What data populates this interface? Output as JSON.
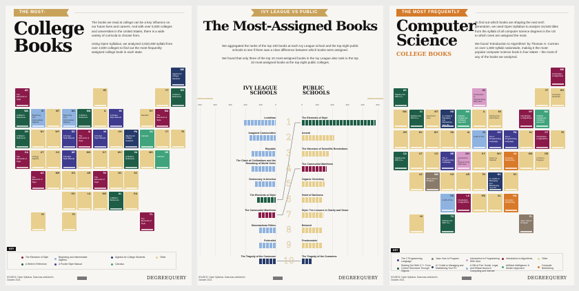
{
  "colors": {
    "maroon": "#8b1a4a",
    "lightblue": "#8fb3e0",
    "navy": "#263a6a",
    "tan": "#e8cf8e",
    "dkgreen": "#1f5e46",
    "purple": "#3f3b8e",
    "teal": "#3fa37c",
    "pink": "#d99bc8",
    "taupe": "#8a7a6a",
    "orange": "#d97a2a",
    "gold": "#c9a25a"
  },
  "left": {
    "banner": "THE MOST-POPULAR",
    "title_line1": "College",
    "title_line2": "Books",
    "intro1": "The books we read at college can be a key influence on our future lives and careers. And with over 5,000 colleges and universities in the United States, there is a wide variety of curricula to choose from.",
    "intro2": "Using Open Syllabus, we analyzed 3,033,469 syllabi from over 2,500 colleges to find out the most frequently assigned college book in each state.",
    "key_label": "KEY",
    "key": [
      {
        "label": "The Elements of Style",
        "color": "maroon"
      },
      {
        "label": "Beginning and Intermediate Algebra",
        "color": "lightblue"
      },
      {
        "label": "Algebra for College Students",
        "color": "navy"
      },
      {
        "label": "Other",
        "color": "tan"
      },
      {
        "label": "A Writer's Reference",
        "color": "dkgreen"
      },
      {
        "label": "A Pocket Style Manual",
        "color": "purple"
      },
      {
        "label": "Calculus",
        "color": "teal"
      }
    ],
    "states": [
      {
        "ab": "ME",
        "c": "navy",
        "r": -1,
        "k": 10,
        "t": "Algebra for College Students"
      },
      {
        "ab": "AK",
        "c": "maroon",
        "r": 0,
        "k": 0,
        "t": "The Elements of Style"
      },
      {
        "ab": "WI",
        "c": "tan",
        "r": 0,
        "k": 5,
        "t": ""
      },
      {
        "ab": "VT",
        "c": "tan",
        "r": 0,
        "k": 9,
        "t": ""
      },
      {
        "ab": "NH",
        "c": "dkgreen",
        "r": 0,
        "k": 10,
        "t": "A Writer's Reference"
      },
      {
        "ab": "WA",
        "c": "dkgreen",
        "r": 1,
        "k": 0,
        "t": "A Writer's Reference"
      },
      {
        "ab": "ID",
        "c": "lightblue",
        "r": 1,
        "k": 1,
        "t": "Beginning and Intermediate Algebra"
      },
      {
        "ab": "MT",
        "c": "tan",
        "r": 1,
        "k": 2,
        "t": ""
      },
      {
        "ab": "ND",
        "c": "lightblue",
        "r": 1,
        "k": 3,
        "t": "Beginning and Intermediate Algebra"
      },
      {
        "ab": "MN",
        "c": "dkgreen",
        "r": 1,
        "k": 4,
        "t": "A Writer's Reference"
      },
      {
        "ab": "IL",
        "c": "tan",
        "r": 1,
        "k": 5,
        "t": ""
      },
      {
        "ab": "MI",
        "c": "purple",
        "r": 1,
        "k": 6,
        "t": "A Pocket Style Manual"
      },
      {
        "ab": "NY",
        "c": "tan",
        "r": 1,
        "k": 8,
        "t": "Republic"
      },
      {
        "ab": "MA",
        "c": "maroon",
        "r": 1,
        "k": 9,
        "t": "The Elements of Style"
      },
      {
        "ab": "OR",
        "c": "dkgreen",
        "r": 2,
        "k": 0,
        "t": "A Writer's Reference"
      },
      {
        "ab": "NV",
        "c": "tan",
        "r": 2,
        "k": 1,
        "t": ""
      },
      {
        "ab": "WY",
        "c": "tan",
        "r": 2,
        "k": 2,
        "t": ""
      },
      {
        "ab": "SD",
        "c": "purple",
        "r": 2,
        "k": 3,
        "t": "A Pocket Style Manual"
      },
      {
        "ab": "IA",
        "c": "maroon",
        "r": 2,
        "k": 4,
        "t": "The Elements of Style"
      },
      {
        "ab": "IN",
        "c": "purple",
        "r": 2,
        "k": 5,
        "t": "A Pocket Style Manual"
      },
      {
        "ab": "OH",
        "c": "tan",
        "r": 2,
        "k": 6,
        "t": ""
      },
      {
        "ab": "PA",
        "c": "navy",
        "r": 2,
        "k": 7,
        "t": "Algebra for College Students"
      },
      {
        "ab": "NJ",
        "c": "teal",
        "r": 2,
        "k": 8,
        "t": "Calculus"
      },
      {
        "ab": "CT",
        "c": "tan",
        "r": 2,
        "k": 9,
        "t": ""
      },
      {
        "ab": "RI",
        "c": "tan",
        "r": 2,
        "k": 10,
        "t": ""
      },
      {
        "ab": "CA",
        "c": "maroon",
        "r": 3,
        "k": 0,
        "t": "The Elements of Style"
      },
      {
        "ab": "UT",
        "c": "tan",
        "r": 3,
        "k": 1,
        "t": "College Algebra"
      },
      {
        "ab": "CO",
        "c": "tan",
        "r": 3,
        "k": 2,
        "t": ""
      },
      {
        "ab": "NE",
        "c": "purple",
        "r": 3,
        "k": 3,
        "t": "A Pocket Style Manual"
      },
      {
        "ab": "MO",
        "c": "tan",
        "r": 3,
        "k": 4,
        "t": ""
      },
      {
        "ab": "KY",
        "c": "tan",
        "r": 3,
        "k": 5,
        "t": ""
      },
      {
        "ab": "WV",
        "c": "tan",
        "r": 3,
        "k": 6,
        "t": ""
      },
      {
        "ab": "VA",
        "c": "dkgreen",
        "r": 3,
        "k": 7,
        "t": "A Writer's Reference"
      },
      {
        "ab": "MD",
        "c": "tan",
        "r": 3,
        "k": 8,
        "t": ""
      },
      {
        "ab": "DE",
        "c": "teal",
        "r": 3,
        "k": 9,
        "t": "Calculus"
      },
      {
        "ab": "AZ",
        "c": "maroon",
        "r": 4,
        "k": 1,
        "t": "The Elements of Style"
      },
      {
        "ab": "NM",
        "c": "tan",
        "r": 4,
        "k": 2,
        "t": ""
      },
      {
        "ab": "KS",
        "c": "tan",
        "r": 4,
        "k": 3,
        "t": ""
      },
      {
        "ab": "AR",
        "c": "tan",
        "r": 4,
        "k": 4,
        "t": ""
      },
      {
        "ab": "TN",
        "c": "maroon",
        "r": 4,
        "k": 5,
        "t": "The Elements of Style"
      },
      {
        "ab": "NC",
        "c": "tan",
        "r": 4,
        "k": 6,
        "t": ""
      },
      {
        "ab": "SC",
        "c": "tan",
        "r": 4,
        "k": 7,
        "t": ""
      },
      {
        "ab": "OK",
        "c": "tan",
        "r": 5,
        "k": 3,
        "t": ""
      },
      {
        "ab": "LA",
        "c": "tan",
        "r": 5,
        "k": 4,
        "t": ""
      },
      {
        "ab": "MS",
        "c": "tan",
        "r": 5,
        "k": 5,
        "t": ""
      },
      {
        "ab": "AL",
        "c": "dkgreen",
        "r": 5,
        "k": 6,
        "t": "A Writer's Reference"
      },
      {
        "ab": "GA",
        "c": "tan",
        "r": 5,
        "k": 7,
        "t": ""
      },
      {
        "ab": "HI",
        "c": "tan",
        "r": 6,
        "k": 1,
        "t": ""
      },
      {
        "ab": "TX",
        "c": "tan",
        "r": 6,
        "k": 3,
        "t": ""
      },
      {
        "ab": "FL",
        "c": "maroon",
        "r": 6,
        "k": 8,
        "t": "The Elements of Style"
      }
    ],
    "source": "SOURCE: Open Syllabus. Data was collected in October 2021.",
    "logo": "DEGREEQUERY"
  },
  "middle": {
    "banner": "IVY LEAGUE VS PUBLIC SCHOOLS",
    "title": "The Most-Assigned Books",
    "intro1": "We aggregated the ranks of the top 100 books at each Ivy League school and the top eight public schools to see if there was a clear difference between which books were assigned.",
    "intro2": "We found that only three of the top 10 most-assigned books in the Ivy League also rank in the top 10 most-assigned books at the top eight public colleges.",
    "col_ivy": [
      "IVY LEAGUE",
      "SCHOOLS"
    ],
    "col_public": [
      "PUBLIC",
      "SCHOOLS"
    ],
    "axis_label": "APPEARANCES",
    "source": "SOURCE: Open Syllabus. Data was collected in October 2021.",
    "logo": "DEGREEQUERY"
  },
  "chart_data": {
    "type": "bar",
    "orientation": "horizontal",
    "xlabel": "APPEARANCES",
    "xlim": [
      0,
      500
    ],
    "xticks": [
      0,
      100,
      200,
      300,
      400,
      500
    ],
    "ranks": [
      1,
      2,
      3,
      4,
      5,
      6,
      7,
      8,
      9,
      10
    ],
    "series": [
      {
        "name": "IVY LEAGUE SCHOOLS",
        "books": [
          "Leviathan",
          "Imagined Communities",
          "Republic",
          "The Clash of Civilizations and the Remaking of World Order",
          "Democracy in America",
          "The Elements of Style",
          "The Communist Manifesto",
          "Nicomachean Ethics",
          "Federalist",
          "The Tragedy of the Commons"
        ],
        "values": [
          210,
          175,
          160,
          160,
          135,
          125,
          115,
          110,
          110,
          110
        ],
        "colors": [
          "lightblue",
          "lightblue",
          "lightblue",
          "lightblue",
          "lightblue",
          "dkgreen",
          "maroon",
          "lightblue",
          "lightblue",
          "navy"
        ]
      },
      {
        "name": "PUBLIC SCHOOLS",
        "books": [
          "The Elements of Style",
          "Aeneid",
          "The Structure of Scientific Revolutions",
          "The Communist Manifesto",
          "Organic Chemistry",
          "Heart of Darkness",
          "Style: Ten Lessons in Clarity and Grace",
          "Beloved",
          "Frankenstein",
          "The Tragedy of the Commons"
        ],
        "values": [
          485,
          215,
          180,
          165,
          150,
          135,
          140,
          135,
          135,
          70
        ],
        "colors": [
          "dkgreen",
          "tan",
          "tan",
          "maroon",
          "tan",
          "tan",
          "tan",
          "tan",
          "tan",
          "navy"
        ]
      }
    ],
    "links": [
      {
        "ivy_rank": 6,
        "public_rank": 1
      },
      {
        "ivy_rank": 7,
        "public_rank": 4
      },
      {
        "ivy_rank": 10,
        "public_rank": 10
      }
    ]
  },
  "right": {
    "banner": "THE MOST FREQUENTLY ASSIGNED",
    "title_line1": "Computer",
    "title_line2": "Science",
    "subtitle": "COLLEGE BOOKS",
    "intro1": "To find out which books are shaping the next tech generation, we used Open Syllabus to analyze 34,548 titles from the syllabi of all computer science degrees in the US to which ones are assigned the most.",
    "intro2": "We found 'Introduction to Algorithms' by Thomas H. Cormen on over 1,800 syllabi nationwide, making it the most-popular computer science book in four states – the most of any of the books we analyzed.",
    "key_label": "KEY",
    "key": [
      {
        "label": "The C Programming Language",
        "color": "purple"
      },
      {
        "label": "Java: How to Program",
        "color": "taupe"
      },
      {
        "label": "Introduction to Programming With Java",
        "color": "pink"
      },
      {
        "label": "Introduction to Algorithms",
        "color": "maroon"
      },
      {
        "label": "Other",
        "color": "tan"
      },
      {
        "label": "Starting Out With C++: From Control Structures Through Objects",
        "color": "dkgreen"
      },
      {
        "label": "A+ Guide to Managing and Maintaining Your PC",
        "color": "navy"
      },
      {
        "label": "A Gift of Fire: Social, Legal, and Ethical Issues in Computing and Internet",
        "color": "lightblue"
      },
      {
        "label": "Artificial Intelligence: A Modern Approach",
        "color": "teal"
      },
      {
        "label": "Computer Networking",
        "color": "orange"
      }
    ],
    "states": [
      {
        "ab": "ME",
        "c": "maroon",
        "r": -1,
        "k": 10,
        "t": "Introduction to Algorithms"
      },
      {
        "ab": "AK",
        "c": "dkgreen",
        "r": 0,
        "k": 0,
        "t": "Starting Out With C++"
      },
      {
        "ab": "WI",
        "c": "pink",
        "r": 0,
        "k": 5,
        "t": "Introduction to Programming With Java"
      },
      {
        "ab": "VT",
        "c": "tan",
        "r": 0,
        "k": 9,
        "t": ""
      },
      {
        "ab": "NH",
        "c": "tan",
        "r": 0,
        "k": 10,
        "t": "Computer Networks"
      },
      {
        "ab": "WA",
        "c": "tan",
        "r": 1,
        "k": 0,
        "t": ""
      },
      {
        "ab": "ID",
        "c": "dkgreen",
        "r": 1,
        "k": 1,
        "t": "Starting Out With C++"
      },
      {
        "ab": "MT",
        "c": "tan",
        "r": 1,
        "k": 2,
        "t": "Head First Java"
      },
      {
        "ab": "ND",
        "c": "navy",
        "r": 1,
        "k": 3,
        "t": "A+ Guide to Managing and Maintaining Your PC"
      },
      {
        "ab": "MN",
        "c": "teal",
        "r": 1,
        "k": 4,
        "t": "Artificial Intelligence: A Modern Approach"
      },
      {
        "ab": "IL",
        "c": "tan",
        "r": 1,
        "k": 5,
        "t": ""
      },
      {
        "ab": "MI",
        "c": "tan",
        "r": 1,
        "k": 6,
        "t": "Starting Out with Python"
      },
      {
        "ab": "NY",
        "c": "maroon",
        "r": 1,
        "k": 8,
        "t": "Introduction to Algorithms"
      },
      {
        "ab": "MA",
        "c": "teal",
        "r": 1,
        "k": 9,
        "t": "Artificial Intelligence: A Modern Approach"
      },
      {
        "ab": "OR",
        "c": "tan",
        "r": 2,
        "k": 0,
        "t": ""
      },
      {
        "ab": "NV",
        "c": "tan",
        "r": 2,
        "k": 1,
        "t": ""
      },
      {
        "ab": "WY",
        "c": "tan",
        "r": 2,
        "k": 2,
        "t": ""
      },
      {
        "ab": "SD",
        "c": "tan",
        "r": 2,
        "k": 3,
        "t": ""
      },
      {
        "ab": "IA",
        "c": "tan",
        "r": 2,
        "k": 4,
        "t": ""
      },
      {
        "ab": "IN",
        "c": "lightblue",
        "r": 2,
        "k": 5,
        "t": "A Gift of Fire"
      },
      {
        "ab": "OH",
        "c": "purple",
        "r": 2,
        "k": 6,
        "t": "The C Programming Language"
      },
      {
        "ab": "PA",
        "c": "purple",
        "r": 2,
        "k": 7,
        "t": "The C Programming Language"
      },
      {
        "ab": "NJ",
        "c": "tan",
        "r": 2,
        "k": 8,
        "t": ""
      },
      {
        "ab": "CT",
        "c": "maroon",
        "r": 2,
        "k": 9,
        "t": "Introduction to Algorithms"
      },
      {
        "ab": "RI",
        "c": "tan",
        "r": 2,
        "k": 10,
        "t": ""
      },
      {
        "ab": "CA",
        "c": "dkgreen",
        "r": 3,
        "k": 0,
        "t": "Starting Out With C++"
      },
      {
        "ab": "UT",
        "c": "tan",
        "r": 3,
        "k": 1,
        "t": ""
      },
      {
        "ab": "CO",
        "c": "tan",
        "r": 3,
        "k": 2,
        "t": ""
      },
      {
        "ab": "NE",
        "c": "purple",
        "r": 3,
        "k": 3,
        "t": "The C Programming Language"
      },
      {
        "ab": "MO",
        "c": "pink",
        "r": 3,
        "k": 4,
        "t": "Introduction to Programming With Java"
      },
      {
        "ab": "KY",
        "c": "tan",
        "r": 3,
        "k": 5,
        "t": ""
      },
      {
        "ab": "WV",
        "c": "tan",
        "r": 3,
        "k": 6,
        "t": "Java in a Nutshell"
      },
      {
        "ab": "VA",
        "c": "orange",
        "r": 3,
        "k": 7,
        "t": "Computer Networking"
      },
      {
        "ab": "MD",
        "c": "tan",
        "r": 3,
        "k": 8,
        "t": ""
      },
      {
        "ab": "DE",
        "c": "tan",
        "r": 3,
        "k": 9,
        "t": "C How to Program"
      },
      {
        "ab": "AZ",
        "c": "tan",
        "r": 4,
        "k": 1,
        "t": ""
      },
      {
        "ab": "NM",
        "c": "taupe",
        "r": 4,
        "k": 2,
        "t": "Java: How to Program"
      },
      {
        "ab": "KS",
        "c": "tan",
        "r": 4,
        "k": 3,
        "t": ""
      },
      {
        "ab": "AR",
        "c": "tan",
        "r": 4,
        "k": 4,
        "t": ""
      },
      {
        "ab": "TN",
        "c": "tan",
        "r": 4,
        "k": 5,
        "t": ""
      },
      {
        "ab": "NC",
        "c": "navy",
        "r": 4,
        "k": 6,
        "t": "A+ Guide to Managing and Maintaining Your PC"
      },
      {
        "ab": "SC",
        "c": "tan",
        "r": 4,
        "k": 7,
        "t": ""
      },
      {
        "ab": "OK",
        "c": "lightblue",
        "r": 5,
        "k": 3,
        "t": "A Gift of Fire"
      },
      {
        "ab": "LA",
        "c": "maroon",
        "r": 5,
        "k": 4,
        "t": "Introduction to Algorithms"
      },
      {
        "ab": "MS",
        "c": "tan",
        "r": 5,
        "k": 5,
        "t": ""
      },
      {
        "ab": "AL",
        "c": "tan",
        "r": 5,
        "k": 6,
        "t": ""
      },
      {
        "ab": "GA",
        "c": "orange",
        "r": 5,
        "k": 7,
        "t": "Computer Networking"
      },
      {
        "ab": "HI",
        "c": "tan",
        "r": 6,
        "k": 1,
        "t": ""
      },
      {
        "ab": "TX",
        "c": "dkgreen",
        "r": 6,
        "k": 3,
        "t": "Starting Out With C++"
      },
      {
        "ab": "FL",
        "c": "taupe",
        "r": 6,
        "k": 8,
        "t": "Java: How to Program"
      }
    ],
    "source": "SOURCE: Open Syllabus. Data was collected in October 2021.",
    "logo": "DEGREEQUERY"
  }
}
